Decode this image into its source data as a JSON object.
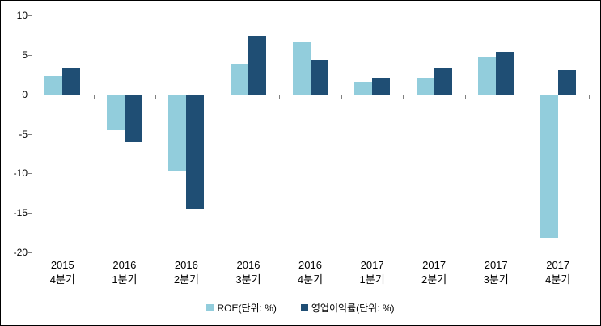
{
  "chart_data": {
    "type": "bar",
    "title": "",
    "xlabel": "",
    "ylabel": "",
    "categories": [
      {
        "line1": "2015",
        "line2": "4분기"
      },
      {
        "line1": "2016",
        "line2": "1분기"
      },
      {
        "line1": "2016",
        "line2": "2분기"
      },
      {
        "line1": "2016",
        "line2": "3분기"
      },
      {
        "line1": "2016",
        "line2": "4분기"
      },
      {
        "line1": "2017",
        "line2": "1분기"
      },
      {
        "line1": "2017",
        "line2": "2분기"
      },
      {
        "line1": "2017",
        "line2": "3분기"
      },
      {
        "line1": "2017",
        "line2": "4분기"
      }
    ],
    "series": [
      {
        "name": "ROE(단위: %)",
        "color": "#92CDDC",
        "values": [
          2.3,
          -4.5,
          -9.8,
          3.9,
          6.6,
          1.6,
          2.0,
          4.7,
          -18.2
        ]
      },
      {
        "name": "영업이익률(단위: %)",
        "color": "#1F4E74",
        "values": [
          3.3,
          -6.0,
          -14.5,
          7.3,
          4.4,
          2.1,
          3.3,
          5.4,
          3.1
        ]
      }
    ],
    "ylim": [
      -20,
      10
    ],
    "yticks": [
      10,
      5,
      0,
      -5,
      -10,
      -15,
      -20
    ],
    "grid": false,
    "legend_position": "bottom",
    "axis_color": "#808080",
    "text_color": "#000000",
    "background_color": "#FFFFFF"
  }
}
